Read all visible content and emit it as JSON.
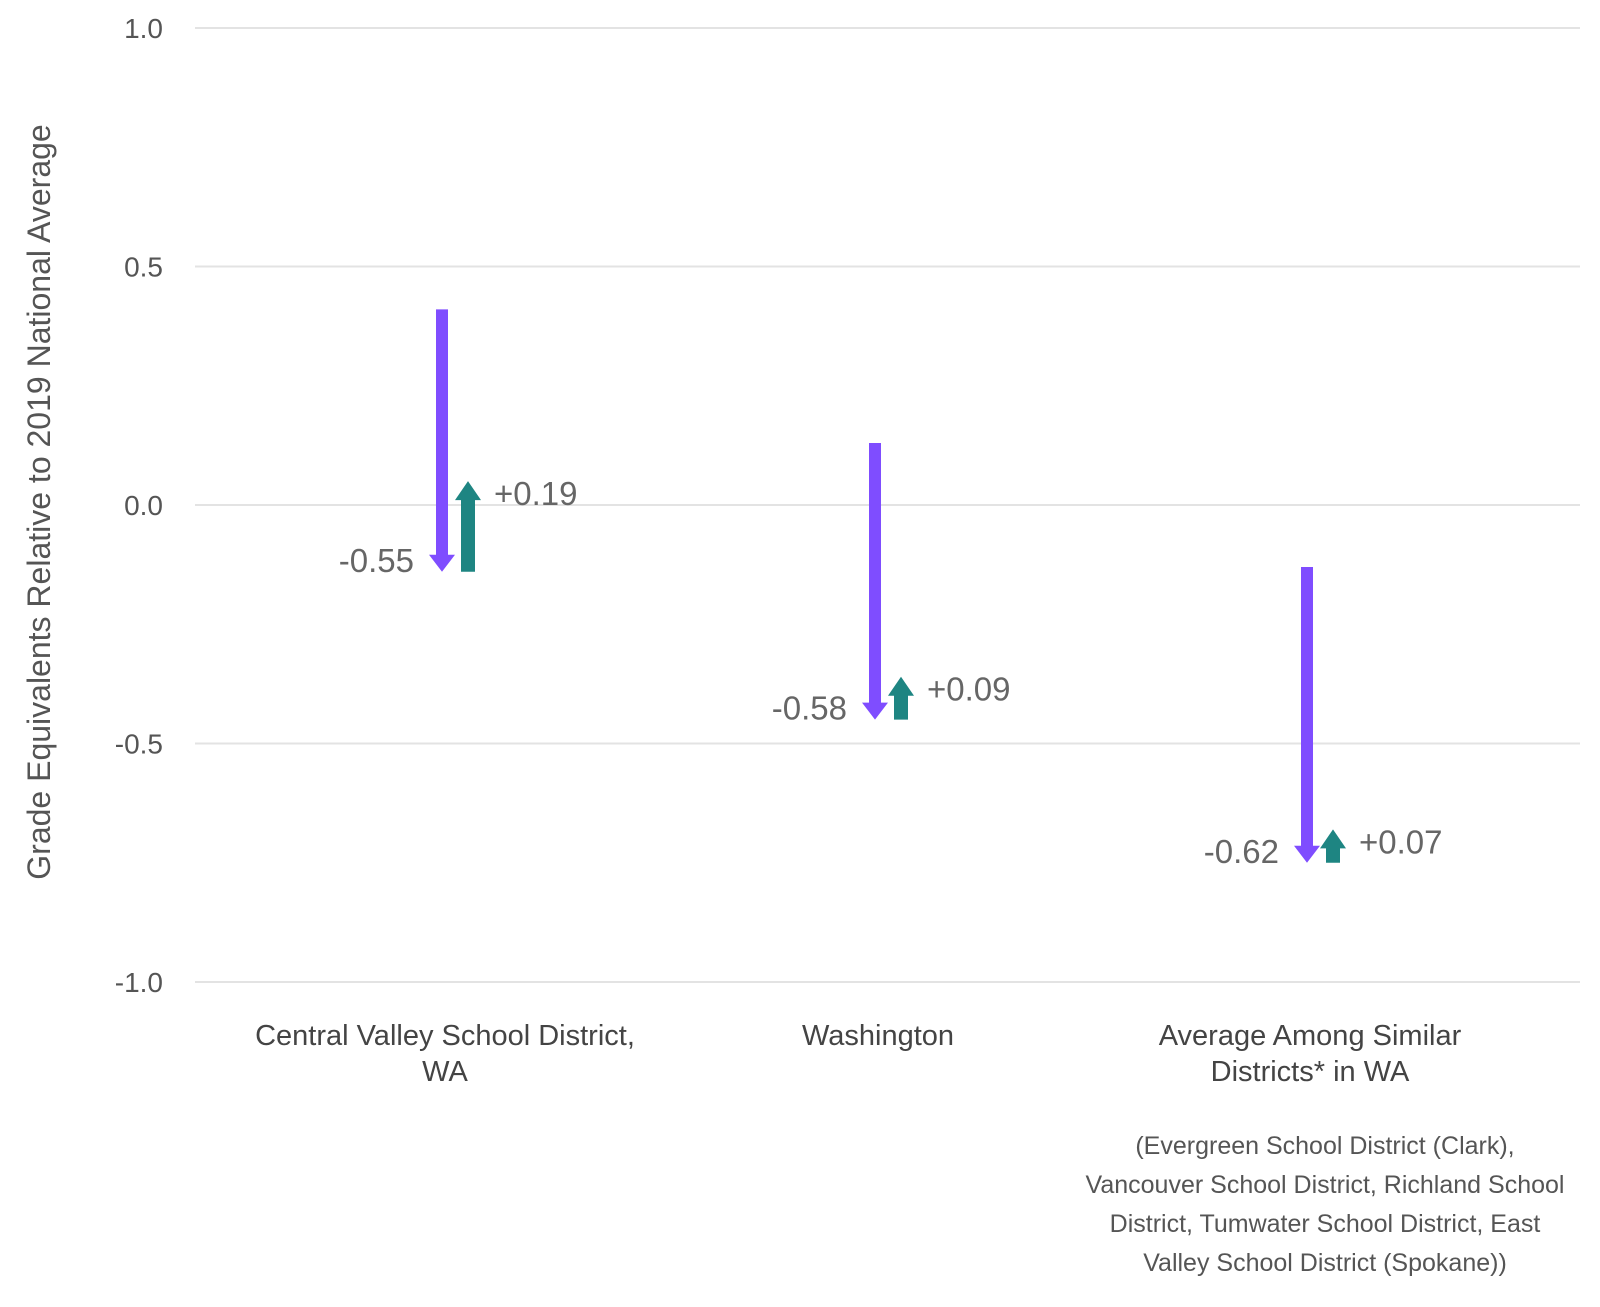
{
  "chart_data": {
    "type": "arrow",
    "ylabel": "Grade Equivalents Relative to 2019 National Average",
    "ylim": [
      -1.0,
      1.0
    ],
    "yticks": [
      "1.0",
      "0.5",
      "0.0",
      "-0.5",
      "-1.0"
    ],
    "grid": true,
    "colors": {
      "decline": "#7f4dff",
      "recovery": "#1e8582",
      "grid": "#e3e3e3"
    },
    "categories": [
      {
        "lines": [
          "Central Valley School District,",
          "WA"
        ],
        "start": 0.41,
        "decline": -0.55,
        "recovery": 0.19,
        "decline_label": "-0.55",
        "recovery_label": "+0.19"
      },
      {
        "lines": [
          "Washington"
        ],
        "start": 0.13,
        "decline": -0.58,
        "recovery": 0.09,
        "decline_label": "-0.58",
        "recovery_label": "+0.09"
      },
      {
        "lines": [
          "Average Among Similar",
          "Districts* in WA"
        ],
        "start": -0.13,
        "decline": -0.62,
        "recovery": 0.07,
        "decline_label": "-0.62",
        "recovery_label": "+0.07",
        "note_lines": [
          "(Evergreen School District (Clark),",
          "Vancouver School District, Richland School",
          "District, Tumwater School District, East",
          "Valley School District (Spokane))"
        ]
      }
    ]
  }
}
